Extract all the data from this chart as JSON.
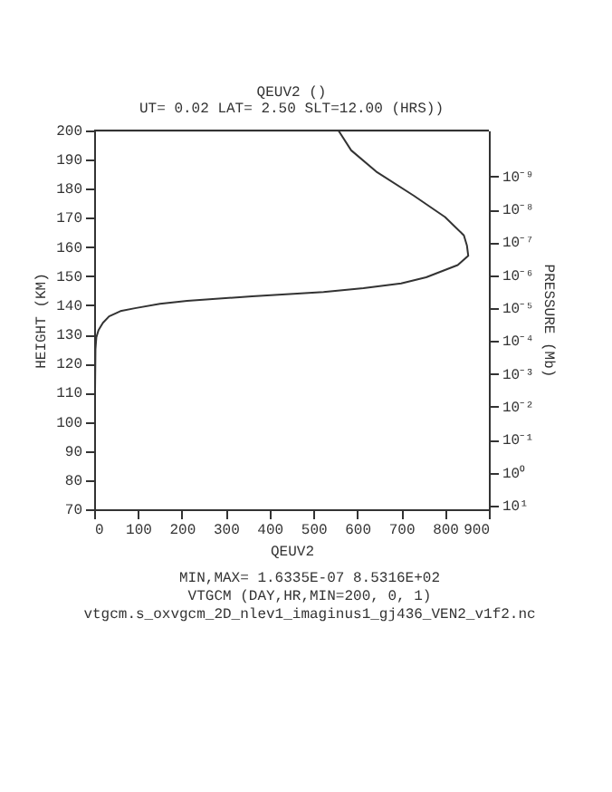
{
  "chart_data": {
    "type": "line",
    "title": "QEUV2 ()",
    "subtitle": "UT= 0.02 LAT=   2.50 SLT=12.00 (HRS))",
    "xlabel": "QEUV2",
    "ylabel": "HEIGHT (KM)",
    "y2label": "PRESSURE (Mb)",
    "series": [
      {
        "color": "#333333",
        "x": [
          2,
          2,
          3,
          5,
          10,
          20,
          34,
          60,
          93,
          150,
          212,
          360,
          523,
          614,
          700,
          757,
          829,
          853,
          850,
          843,
          800,
          729,
          643,
          586,
          557
        ],
        "values": [
          70,
          110,
          125,
          129,
          131.5,
          134,
          136.2,
          138,
          139,
          140.5,
          141.5,
          143.1,
          144.6,
          145.9,
          147.5,
          149.6,
          153.8,
          157,
          160.5,
          164,
          170.3,
          177.6,
          185.9,
          193.2,
          200
        ]
      }
    ],
    "xlim": [
      0,
      900
    ],
    "xticks": [
      0,
      100,
      200,
      300,
      400,
      500,
      600,
      700,
      800,
      900
    ],
    "ylim": [
      70,
      200
    ],
    "yticks": [
      70,
      80,
      90,
      100,
      110,
      120,
      130,
      140,
      150,
      160,
      170,
      180,
      190,
      200
    ],
    "y2lim": [
      13,
      4e-11
    ],
    "log": "y2",
    "y2ticks": [
      {
        "value": 1e-09,
        "label": "10⁻⁹"
      },
      {
        "value": 1e-08,
        "label": "10⁻⁸"
      },
      {
        "value": 1e-07,
        "label": "10⁻⁷"
      },
      {
        "value": 1e-06,
        "label": "10⁻⁶"
      },
      {
        "value": 1e-05,
        "label": "10⁻⁵"
      },
      {
        "value": 0.0001,
        "label": "10⁻⁴"
      },
      {
        "value": 0.001,
        "label": "10⁻³"
      },
      {
        "value": 0.01,
        "label": "10⁻²"
      },
      {
        "value": 0.1,
        "label": "10⁻¹"
      },
      {
        "value": 1,
        "label": "10⁰"
      },
      {
        "value": 10,
        "label": "10¹"
      }
    ],
    "grid": false,
    "marker": "none",
    "line_style": "solid",
    "annotations": [
      "MIN,MAX=  1.6335E-07  8.5316E+02",
      "VTGCM (DAY,HR,MIN=200, 0, 1)",
      "vtgcm.s_oxvgcm_2D_nlev1_imaginus1_gj436_VEN2_v1f2.nc"
    ]
  }
}
